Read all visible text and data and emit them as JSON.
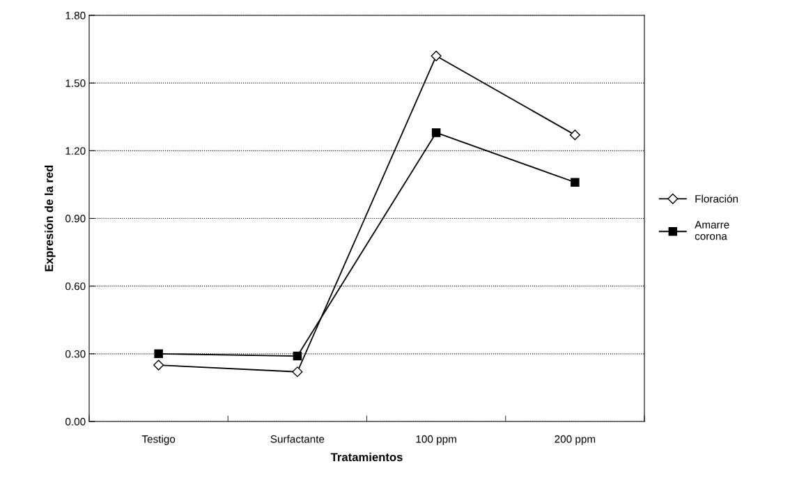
{
  "chart_data": {
    "type": "line",
    "xlabel": "Tratamientos",
    "ylabel": "Expresión de la red",
    "categories": [
      "Testigo",
      "Surfactante",
      "100 ppm",
      "200 ppm"
    ],
    "series": [
      {
        "name": "Floración",
        "color": "#000000",
        "marker": "diamond",
        "values": [
          0.25,
          0.22,
          1.62,
          1.27
        ]
      },
      {
        "name": "Amarre\ncorona",
        "color": "#000000",
        "marker": "square",
        "values": [
          0.3,
          0.29,
          1.28,
          1.06
        ]
      }
    ],
    "ylim": [
      0,
      1.8
    ],
    "yticks": [
      {
        "value": 0,
        "label": "0.00"
      },
      {
        "value": 0.3,
        "label": "0.30"
      },
      {
        "value": 0.6,
        "label": "0.60"
      },
      {
        "value": 0.9,
        "label": "0.90"
      },
      {
        "value": 1.2,
        "label": "1.20"
      },
      {
        "value": 1.5,
        "label": "1.50"
      },
      {
        "value": 1.8,
        "label": "1.80"
      }
    ],
    "grid": "y",
    "legend": "right",
    "line_style": "solid"
  }
}
